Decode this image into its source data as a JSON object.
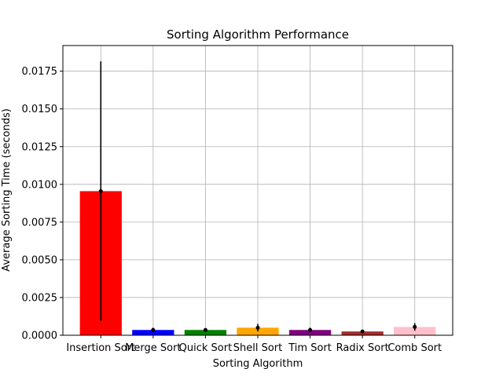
{
  "chart_data": {
    "type": "bar",
    "title": "Sorting Algorithm Performance",
    "xlabel": "Sorting Algorithm",
    "ylabel": "Average Sorting Time (seconds)",
    "categories": [
      "Insertion Sort",
      "Merge Sort",
      "Quick Sort",
      "Shell Sort",
      "Tim Sort",
      "Radix Sort",
      "Comb Sort"
    ],
    "values": [
      0.00955,
      0.00035,
      0.00035,
      0.0005,
      0.00035,
      0.00025,
      0.00055
    ],
    "error": [
      0.0086,
      0.00015,
      0.00012,
      0.00025,
      0.00015,
      8e-05,
      0.00025
    ],
    "colors": [
      "#ff0000",
      "#0000ff",
      "#008000",
      "#ffa500",
      "#800080",
      "#a52a2a",
      "#ffc0cb"
    ],
    "ylim": [
      0,
      0.0192
    ],
    "yticks": [
      "0.0000",
      "0.0025",
      "0.0050",
      "0.0075",
      "0.0100",
      "0.0125",
      "0.0150",
      "0.0175"
    ],
    "grid": true
  }
}
